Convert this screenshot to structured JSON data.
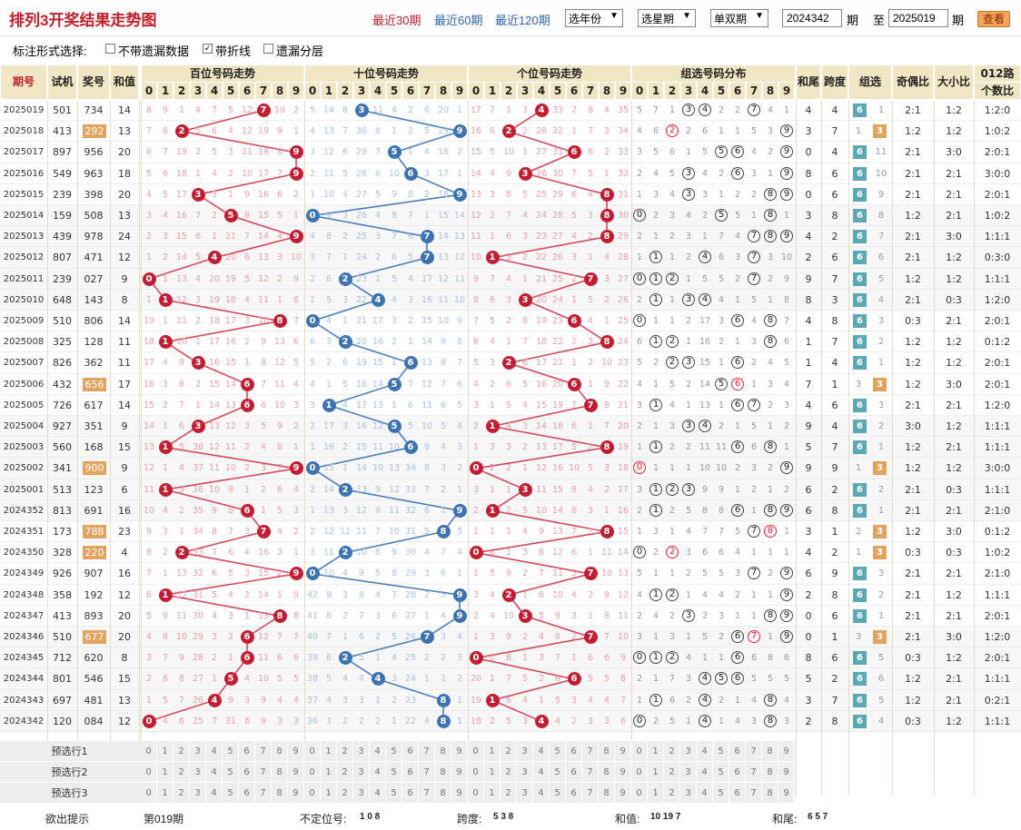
{
  "header": {
    "title": "排列3开奖结果走势图",
    "quick": [
      "最近30期",
      "最近60期",
      "最近120期"
    ],
    "year": "选年份",
    "week": "选星期",
    "parity": "单双期",
    "from": "2024342",
    "period1": "期",
    "to_label": "至",
    "to": "2025019",
    "period2": "期",
    "view": "查看"
  },
  "options": {
    "label": "标注形式选择:",
    "opt1": "不带遗漏数据",
    "opt2": "带折线",
    "opt3": "遗漏分层"
  },
  "columns": {
    "qihao": "期号",
    "shiji": "试机",
    "jianghao": "奖号",
    "hezhi": "和值",
    "bai": "百位号码走势",
    "shi": "十位号码走势",
    "ge": "个位号码走势",
    "zuxuan": "组选号码分布",
    "hewei": "和尾",
    "kuadu": "跨度",
    "zu": "组选",
    "jiou": "奇偶比",
    "daxiao": "大小比",
    "lu012a": "012路",
    "lu012b": "个数比"
  },
  "digits": [
    "0",
    "1",
    "2",
    "3",
    "4",
    "5",
    "6",
    "7",
    "8",
    "9"
  ],
  "rows": [
    {
      "q": "2025019",
      "s": "501",
      "j": "734",
      "h": "14",
      "hw": "4",
      "kd": "4",
      "g": "6",
      "go": "1",
      "jo": "2:1",
      "dx": "1:2",
      "lu": "1:2:0"
    },
    {
      "q": "2025018",
      "s": "413",
      "j": "292",
      "h": "13",
      "hw": "3",
      "kd": "7",
      "g": "3",
      "go": "1",
      "jo": "1:2",
      "dx": "1:2",
      "lu": "1:0:2"
    },
    {
      "q": "2025017",
      "s": "897",
      "j": "956",
      "h": "20",
      "hw": "0",
      "kd": "4",
      "g": "6",
      "go": "11",
      "jo": "2:1",
      "dx": "3:0",
      "lu": "2:0:1"
    },
    {
      "q": "2025016",
      "s": "549",
      "j": "963",
      "h": "18",
      "hw": "8",
      "kd": "6",
      "g": "6",
      "go": "10",
      "jo": "2:1",
      "dx": "2:1",
      "lu": "3:0:0"
    },
    {
      "q": "2025015",
      "s": "239",
      "j": "398",
      "h": "20",
      "hw": "0",
      "kd": "6",
      "g": "6",
      "go": "9",
      "jo": "2:1",
      "dx": "2:1",
      "lu": "2:0:1"
    },
    {
      "q": "2025014",
      "s": "159",
      "j": "508",
      "h": "13",
      "hw": "3",
      "kd": "8",
      "g": "6",
      "go": "8",
      "jo": "1:2",
      "dx": "2:1",
      "lu": "1:0:2"
    },
    {
      "q": "2025013",
      "s": "439",
      "j": "978",
      "h": "24",
      "hw": "4",
      "kd": "2",
      "g": "6",
      "go": "7",
      "jo": "2:1",
      "dx": "3:0",
      "lu": "1:1:1"
    },
    {
      "q": "2025012",
      "s": "807",
      "j": "471",
      "h": "12",
      "hw": "2",
      "kd": "6",
      "g": "6",
      "go": "6",
      "jo": "2:1",
      "dx": "1:2",
      "lu": "0:3:0"
    },
    {
      "q": "2025011",
      "s": "239",
      "j": "027",
      "h": "9",
      "hw": "9",
      "kd": "7",
      "g": "6",
      "go": "5",
      "jo": "1:2",
      "dx": "1:2",
      "lu": "1:1:1"
    },
    {
      "q": "2025010",
      "s": "648",
      "j": "143",
      "h": "8",
      "hw": "8",
      "kd": "3",
      "g": "6",
      "go": "4",
      "jo": "2:1",
      "dx": "0:3",
      "lu": "1:2:0"
    },
    {
      "q": "2025009",
      "s": "510",
      "j": "806",
      "h": "14",
      "hw": "4",
      "kd": "8",
      "g": "6",
      "go": "3",
      "jo": "0:3",
      "dx": "2:1",
      "lu": "2:0:1"
    },
    {
      "q": "2025008",
      "s": "325",
      "j": "128",
      "h": "11",
      "hw": "1",
      "kd": "7",
      "g": "6",
      "go": "2",
      "jo": "1:2",
      "dx": "1:2",
      "lu": "0:1:2"
    },
    {
      "q": "2025007",
      "s": "826",
      "j": "362",
      "h": "11",
      "hw": "1",
      "kd": "4",
      "g": "6",
      "go": "1",
      "jo": "1:2",
      "dx": "1:2",
      "lu": "2:0:1"
    },
    {
      "q": "2025006",
      "s": "432",
      "j": "656",
      "h": "17",
      "hw": "7",
      "kd": "1",
      "g": "3",
      "go": "3",
      "jo": "1:2",
      "dx": "3:0",
      "lu": "2:0:1"
    },
    {
      "q": "2025005",
      "s": "726",
      "j": "617",
      "h": "14",
      "hw": "4",
      "kd": "6",
      "g": "6",
      "go": "3",
      "jo": "2:1",
      "dx": "2:1",
      "lu": "1:2:0"
    },
    {
      "q": "2025004",
      "s": "927",
      "j": "351",
      "h": "9",
      "hw": "9",
      "kd": "4",
      "g": "6",
      "go": "2",
      "jo": "3:0",
      "dx": "1:2",
      "lu": "1:1:1"
    },
    {
      "q": "2025003",
      "s": "560",
      "j": "168",
      "h": "15",
      "hw": "5",
      "kd": "7",
      "g": "6",
      "go": "1",
      "jo": "1:2",
      "dx": "2:1",
      "lu": "1:1:1"
    },
    {
      "q": "2025002",
      "s": "341",
      "j": "900",
      "h": "9",
      "hw": "9",
      "kd": "9",
      "g": "3",
      "go": "1",
      "jo": "1:2",
      "dx": "1:2",
      "lu": "3:0:0"
    },
    {
      "q": "2025001",
      "s": "513",
      "j": "123",
      "h": "6",
      "hw": "6",
      "kd": "2",
      "g": "6",
      "go": "2",
      "jo": "2:1",
      "dx": "0:3",
      "lu": "1:1:1"
    },
    {
      "q": "2024352",
      "s": "813",
      "j": "691",
      "h": "16",
      "hw": "6",
      "kd": "8",
      "g": "6",
      "go": "1",
      "jo": "2:1",
      "dx": "2:1",
      "lu": "2:1:0"
    },
    {
      "q": "2024351",
      "s": "173",
      "j": "788",
      "h": "23",
      "hw": "3",
      "kd": "1",
      "g": "3",
      "go": "2",
      "jo": "1:2",
      "dx": "3:0",
      "lu": "0:1:2"
    },
    {
      "q": "2024350",
      "s": "328",
      "j": "220",
      "h": "4",
      "hw": "4",
      "kd": "2",
      "g": "3",
      "go": "1",
      "jo": "0:3",
      "dx": "0:3",
      "lu": "1:0:2"
    },
    {
      "q": "2024349",
      "s": "926",
      "j": "907",
      "h": "16",
      "hw": "6",
      "kd": "9",
      "g": "6",
      "go": "3",
      "jo": "2:1",
      "dx": "2:1",
      "lu": "2:1:0"
    },
    {
      "q": "2024348",
      "s": "358",
      "j": "192",
      "h": "12",
      "hw": "2",
      "kd": "8",
      "g": "6",
      "go": "2",
      "jo": "2:1",
      "dx": "1:2",
      "lu": "1:1:1"
    },
    {
      "q": "2024347",
      "s": "413",
      "j": "893",
      "h": "20",
      "hw": "0",
      "kd": "6",
      "g": "6",
      "go": "1",
      "jo": "2:1",
      "dx": "2:1",
      "lu": "2:0:1"
    },
    {
      "q": "2024346",
      "s": "510",
      "j": "677",
      "h": "20",
      "hw": "0",
      "kd": "1",
      "g": "3",
      "go": "3",
      "jo": "2:1",
      "dx": "3:0",
      "lu": "1:2:0"
    },
    {
      "q": "2024345",
      "s": "712",
      "j": "620",
      "h": "8",
      "hw": "8",
      "kd": "6",
      "g": "6",
      "go": "5",
      "jo": "0:3",
      "dx": "1:2",
      "lu": "2:0:1"
    },
    {
      "q": "2024344",
      "s": "801",
      "j": "546",
      "h": "15",
      "hw": "5",
      "kd": "2",
      "g": "6",
      "go": "6",
      "jo": "1:2",
      "dx": "2:1",
      "lu": "1:1:1"
    },
    {
      "q": "2024343",
      "s": "697",
      "j": "481",
      "h": "13",
      "hw": "3",
      "kd": "7",
      "g": "6",
      "go": "5",
      "jo": "1:2",
      "dx": "2:1",
      "lu": "0:2:1"
    },
    {
      "q": "2024342",
      "s": "120",
      "j": "084",
      "h": "12",
      "hw": "2",
      "kd": "8",
      "g": "6",
      "go": "4",
      "jo": "0:3",
      "dx": "1:2",
      "lu": "1:1:1"
    }
  ],
  "yilou": {
    "bai": [
      "8 9 1 4 7 5 12 _ 10 2",
      "7 8 _ 5 6 4 12 19 9 1",
      "6 7 19 2 5 3 11 18 8 _",
      "5 6 18 1 4 2 10 17 7 _",
      "4 5 17 _ 3 1 9 16 6 2",
      "3 4 16 7 2 _ 8 15 5 1",
      "2 3 15 6 1 21 7 14 4 _",
      "1 2 14 5 _ 20 6 13 3 10",
      "_ 1 13 4 20 19 5 12 2 9",
      "1 _ 12 3 19 18 4 11 1 8",
      "19 1 11 2 18 17 3 10 _ 7",
      "18 _ 10 1 17 16 2 9 13 6",
      "17 4 9 _ 16 15 1 8 12 5",
      "16 3 8 2 15 14 _ 7 11 4",
      "15 2 7 1 14 13 _ 6 10 3",
      "14 1 6 _ 13 12 3 5 9 2",
      "13 _ 5 38 12 11 2 4 8 1",
      "12 1 4 37 11 10 2 3 7 _",
      "11 _ 3 36 10 9 1 2 6 4",
      "10 4 2 35 9 8 _ 1 5 3",
      "9 3 1 34 8 7 3 _ 4 2",
      "8 2 _ 33 7 6 4 16 3 1",
      "7 1 13 32 6 5 3 15 2 _",
      "6 _ 12 31 5 4 2 14 1 9",
      "5 9 11 30 4 3 1 13 _ 8",
      "4 8 10 29 3 2 _ 12 7 7",
      "3 7 9 28 2 1 _ 11 6 6",
      "2 6 8 27 1 _ 4 10 5 5",
      "1 5 7 26 _ 9 3 9 4 4",
      "_ 4 6 25 7 31 8 9 3 3"
    ],
    "shi": [
      "5 14 8 _ 11 4 2 6 20 1",
      "4 13 7 30 8 1 2 5 19 _",
      "3 12 6 29 7 _ 1 4 18 2",
      "2 11 5 28 6 10 _ 3 17 1",
      "1 10 4 27 5 9 8 2 16 _",
      "_ 9 3 26 4 8 7 1 15 14",
      "4 8 2 25 3 7 6 _ 14 13",
      "3 7 1 24 2 6 5 _ 13 12",
      "2 6 _ 23 1 5 4 17 12 11",
      "1 5 3 22 _ 4 3 16 11 10",
      "_ 4 1 21 17 3 2 15 10 9",
      "6 3 _ 20 16 2 1 14 9 8",
      "5 2 6 19 15 1 _ 13 8 7",
      "4 1 5 18 14 _ 7 12 7 6",
      "3 _ 4 17 13 1 6 11 6 5",
      "2 17 3 16 12 _ 5 10 5 4",
      "1 16 2 15 11 10 _ 9 4 3",
      "_ 15 1 14 10 13 34 8 3 2",
      "2 14 _ 13 9 12 33 7 2 1",
      "1 13 3 12 8 11 32 6 1 _",
      "2 12 11 11 7 10 31 5 _ 5",
      "3 11 _ 10 6 9 30 4 7 4",
      "_ 10 4 9 5 8 29 3 6 1",
      "42 9 3 8 4 7 28 2 5 _",
      "41 8 2 7 3 6 27 1 4 _",
      "40 7 1 6 2 5 26 _ 3 4",
      "39 6 _ 5 1 4 25 2 2 3",
      "38 5 4 4 _ 3 24 1 1 2",
      "37 4 3 3 1 2 23 _ _ 1",
      "36 3 2 2 2 1 22 4 _ 1"
    ],
    "ge": [
      "17 7 1 3 _ 33 2 8 4 35",
      "16 6 _ 2 28 32 1 7 3 34",
      "15 5 10 1 27 31 _ 6 2 33",
      "14 4 9 _ 26 30 7 5 1 32",
      "13 3 8 5 25 29 6 4 _ 31",
      "12 2 7 4 24 28 5 3 _ 30",
      "11 1 6 3 23 27 4 2 _ 29",
      "10 _ 5 2 22 26 3 1 4 28",
      "9 7 4 1 21 25 2 _ 3 27",
      "8 6 3 _ 20 24 1 5 2 26",
      "7 5 2 8 19 23 _ 4 1 25",
      "6 4 1 7 18 22 2 3 _ 24",
      "5 3 _ 6 17 21 1 2 10 23",
      "4 2 6 5 16 20 _ 1 9 22",
      "3 1 5 4 15 19 7 _ 8 21",
      "2 _ 4 3 14 18 6 1 7 20",
      "1 3 3 2 13 17 5 2 _ 19",
      "_ 2 2 1 12 16 10 5 3 18",
      "3 1 1 _ 11 15 9 4 2 17",
      "2 _ 2 5 10 14 8 3 1 16",
      "1 1 1 4 9 13 7 2 _ 15",
      "_ 6 1 3 8 12 6 1 11 14",
      "1 5 9 2 7 11 5 _ 10 13",
      "3 4 _ 1 6 10 4 2 9 12",
      "2 4 10 _ 5 9 3 1 8 11",
      "1 3 9 2 4 8 2 _ 7 10",
      "_ 2 8 1 3 7 1 6 6 9",
      "20 1 7 5 2 6 _ 5 5 8",
      "19 _ 6 4 1 5 3 4 4 7",
      "18 2 5 3 _ 4 2 3 3 6"
    ]
  },
  "zu_dist": [
    "5 7 1 R R 2 2 R 4 1",
    "4 6 r 2 6 1 1 5 3 R",
    "3 5 6 1 5 R R 4 2 R",
    "2 4 5 R 4 2 R 3 1 R",
    "1 3 4 R 3 1 2 2 R R",
    "R 2 3 4 2 R 5 1 R 1",
    "2 1 2 3 1 7 4 R R R",
    "1 R 1 2 R 6 3 R 3 10",
    "R R R 1 5 5 2 R 2 9",
    "2 R 1 R R 4 1 5 1 8",
    "R 1 1 2 17 3 R 4 R 7",
    "6 R R 1 16 2 1 3 R 6",
    "5 2 R R 15 1 R 2 4 5",
    "4 1 5 2 14 R r 1 3 4",
    "3 R 4 1 13 1 R R 2 3",
    "2 1 3 R R 2 1 5 1 2",
    "1 R 2 2 11 11 R 6 R 1",
    "r 1 1 1 10 10 2 3 2 R",
    "3 R R R 9 9 1 2 1 2",
    "2 R 2 5 8 8 R 1 R R",
    "1 3 1 4 7 7 5 R r 1",
    "R 2 r 3 6 6 4 1 1 1",
    "5 1 1 2 5 5 3 R 2 R",
    "4 R R 1 4 4 2 1 1 R",
    "2 4 2 R 2 3 1 1 R R",
    "3 1 3 1 5 2 R r 1 R",
    "R R R 4 1 1 R 6 8 6",
    "2 1 7 3 R R R 5 5 5",
    "1 R 6 2 R 2 1 4 R 4",
    "R 2 5 1 R 1 4 3 R 3"
  ],
  "preselect": [
    "预选行1",
    "预选行2",
    "预选行3"
  ],
  "footer": {
    "label": "欲出提示",
    "period": "第019期",
    "budingwei_label": "不定位号:",
    "budingwei": "1 0 8",
    "kuadu_label": "跨度:",
    "kuadu": "5 3 8",
    "hezhi_label": "和值:",
    "hezhi": "10 19 7",
    "hewei_label": "和尾:",
    "hewei": "6 5 7"
  },
  "colors": {
    "red": "#c21d33",
    "blue": "#3c73b0",
    "tan": "#f1e6c3",
    "teal": "#5ba9b5",
    "orange": "#e3a35e",
    "redline": "#d44a5c",
    "blueline": "#4a7fbd"
  }
}
